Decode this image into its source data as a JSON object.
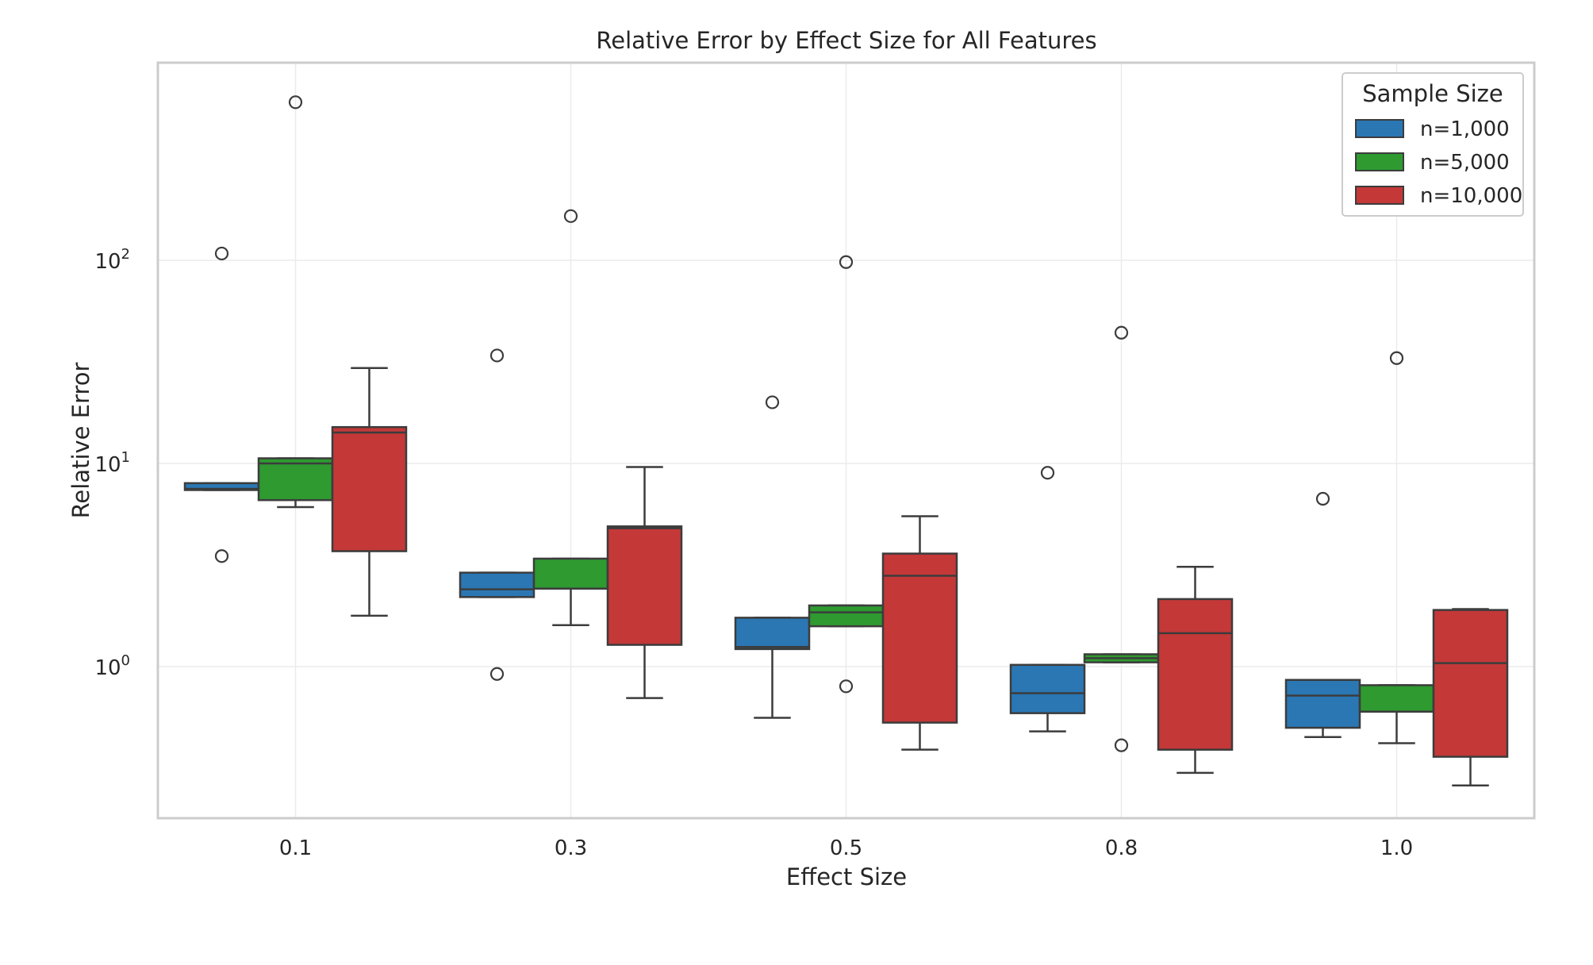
{
  "chart_data": {
    "type": "box",
    "title": "Relative Error by Effect Size for All Features",
    "xlabel": "Effect Size",
    "ylabel": "Relative Error",
    "yscale": "log",
    "ylim": [
      0.18,
      900
    ],
    "y_ticks": [
      {
        "value": 1,
        "base": "10",
        "exp": "0"
      },
      {
        "value": 10,
        "base": "10",
        "exp": "1"
      },
      {
        "value": 100,
        "base": "10",
        "exp": "2"
      }
    ],
    "categories": [
      "0.1",
      "0.3",
      "0.5",
      "0.8",
      "1.0"
    ],
    "grid": true,
    "legend": {
      "title": "Sample Size",
      "position": "top-right"
    },
    "series": [
      {
        "name": "n=1,000",
        "color": "#2a77b4",
        "boxes": [
          {
            "whislo": 7.4,
            "q1": 7.4,
            "med": 7.5,
            "q3": 8.0,
            "whishi": 8.0,
            "fliers": [
              108,
              3.5
            ]
          },
          {
            "whislo": 2.2,
            "q1": 2.2,
            "med": 2.4,
            "q3": 2.9,
            "whishi": 2.9,
            "fliers": [
              34,
              0.92
            ]
          },
          {
            "whislo": 0.56,
            "q1": 1.22,
            "med": 1.25,
            "q3": 1.74,
            "whishi": 1.74,
            "fliers": [
              20
            ]
          },
          {
            "whislo": 0.48,
            "q1": 0.59,
            "med": 0.74,
            "q3": 1.02,
            "whishi": 1.02,
            "fliers": [
              9.0
            ]
          },
          {
            "whislo": 0.45,
            "q1": 0.5,
            "med": 0.72,
            "q3": 0.86,
            "whishi": 0.86,
            "fliers": [
              6.7
            ]
          }
        ]
      },
      {
        "name": "n=5,000",
        "color": "#2e9a30",
        "boxes": [
          {
            "whislo": 6.1,
            "q1": 6.6,
            "med": 10.0,
            "q3": 10.6,
            "whishi": 10.6,
            "fliers": [
              600
            ]
          },
          {
            "whislo": 1.6,
            "q1": 2.42,
            "med": 2.42,
            "q3": 3.4,
            "whishi": 3.4,
            "fliers": [
              165
            ]
          },
          {
            "whislo": 1.58,
            "q1": 1.58,
            "med": 1.85,
            "q3": 2.0,
            "whishi": 2.0,
            "fliers": [
              98,
              0.8
            ]
          },
          {
            "whislo": 1.05,
            "q1": 1.05,
            "med": 1.1,
            "q3": 1.15,
            "whishi": 1.15,
            "fliers": [
              44,
              0.41
            ]
          },
          {
            "whislo": 0.42,
            "q1": 0.6,
            "med": 0.6,
            "q3": 0.81,
            "whishi": 0.81,
            "fliers": [
              33
            ]
          }
        ]
      },
      {
        "name": "n=10,000",
        "color": "#c43838",
        "boxes": [
          {
            "whislo": 1.78,
            "q1": 3.7,
            "med": 14.2,
            "q3": 15.1,
            "whishi": 29.5,
            "fliers": []
          },
          {
            "whislo": 0.7,
            "q1": 1.28,
            "med": 4.8,
            "q3": 4.9,
            "whishi": 9.6,
            "fliers": []
          },
          {
            "whislo": 0.39,
            "q1": 0.53,
            "med": 2.8,
            "q3": 3.6,
            "whishi": 5.5,
            "fliers": []
          },
          {
            "whislo": 0.3,
            "q1": 0.39,
            "med": 1.46,
            "q3": 2.15,
            "whishi": 3.1,
            "fliers": []
          },
          {
            "whislo": 0.26,
            "q1": 0.36,
            "med": 1.04,
            "q3": 1.9,
            "whishi": 1.92,
            "fliers": []
          }
        ]
      }
    ]
  }
}
